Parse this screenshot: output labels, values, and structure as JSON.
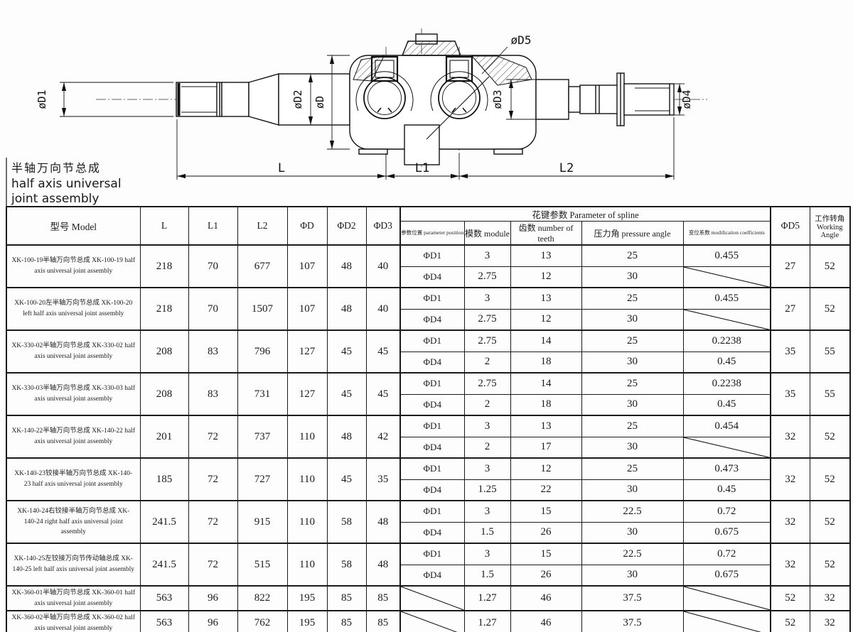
{
  "title_block": {
    "line_zh": "半轴万向节总成",
    "line_en1": "half axis universal",
    "line_en2": "joint assembly"
  },
  "drawing": {
    "labels": {
      "d1": "øD1",
      "d2": "øD2",
      "d": "øD",
      "d3": "øD3",
      "d4": "øD4",
      "d5": "øD5",
      "L": "L",
      "L1": "L1",
      "L2": "L2"
    }
  },
  "table": {
    "headers": {
      "model": "型号 Model",
      "L": "L",
      "L1": "L1",
      "L2": "L2",
      "D": "ΦD",
      "D2": "ΦD2",
      "D3": "ΦD3",
      "spline_group": "花键参数 Parameter of spline",
      "position": "参数位置 parameter position",
      "module": "模数 module",
      "teeth": "齿数 number of teeth",
      "pressure": "压力角 pressure angle",
      "modification": "变位系数 modification coefficients",
      "D5": "ΦD5",
      "angle_zh": "工作转角",
      "angle_en": "Working Angle"
    },
    "rows": [
      {
        "model": "XK-100-19半轴万向节总成  XK-100-19 half axis universal joint assembly",
        "L": "218",
        "L1": "70",
        "L2": "677",
        "D": "107",
        "D2": "48",
        "D3": "40",
        "spline": [
          {
            "pos": "ΦD1",
            "module": "3",
            "teeth": "13",
            "pressure": "25",
            "mod": "0.455"
          },
          {
            "pos": "ΦD4",
            "module": "2.75",
            "teeth": "12",
            "pressure": "30",
            "mod": null
          }
        ],
        "D5": "27",
        "angle": "52"
      },
      {
        "model": "XK-100-20左半轴万向节总成  XK-100-20 left half axis universal joint assembly",
        "L": "218",
        "L1": "70",
        "L2": "1507",
        "D": "107",
        "D2": "48",
        "D3": "40",
        "spline": [
          {
            "pos": "ΦD1",
            "module": "3",
            "teeth": "13",
            "pressure": "25",
            "mod": "0.455"
          },
          {
            "pos": "ΦD4",
            "module": "2.75",
            "teeth": "12",
            "pressure": "30",
            "mod": null
          }
        ],
        "D5": "27",
        "angle": "52"
      },
      {
        "model": "XK-330-02半轴万向节总成  XK-330-02 half axis universal joint assembly",
        "L": "208",
        "L1": "83",
        "L2": "796",
        "D": "127",
        "D2": "45",
        "D3": "45",
        "spline": [
          {
            "pos": "ΦD1",
            "module": "2.75",
            "teeth": "14",
            "pressure": "25",
            "mod": "0.2238"
          },
          {
            "pos": "ΦD4",
            "module": "2",
            "teeth": "18",
            "pressure": "30",
            "mod": "0.45"
          }
        ],
        "D5": "35",
        "angle": "55"
      },
      {
        "model": "XK-330-03半轴万向节总成  XK-330-03 half axis universal joint assembly",
        "L": "208",
        "L1": "83",
        "L2": "731",
        "D": "127",
        "D2": "45",
        "D3": "45",
        "spline": [
          {
            "pos": "ΦD1",
            "module": "2.75",
            "teeth": "14",
            "pressure": "25",
            "mod": "0.2238"
          },
          {
            "pos": "ΦD4",
            "module": "2",
            "teeth": "18",
            "pressure": "30",
            "mod": "0.45"
          }
        ],
        "D5": "35",
        "angle": "55"
      },
      {
        "model": "XK-140-22半轴万向节总成  XK-140-22 half axis universal joint assembly",
        "L": "201",
        "L1": "72",
        "L2": "737",
        "D": "110",
        "D2": "48",
        "D3": "42",
        "spline": [
          {
            "pos": "ΦD1",
            "module": "3",
            "teeth": "13",
            "pressure": "25",
            "mod": "0.454"
          },
          {
            "pos": "ΦD4",
            "module": "2",
            "teeth": "17",
            "pressure": "30",
            "mod": null
          }
        ],
        "D5": "32",
        "angle": "52"
      },
      {
        "model": "XK-140-23铰接半轴万向节总成  XK-140-23 half axis universal joint assembly",
        "L": "185",
        "L1": "72",
        "L2": "727",
        "D": "110",
        "D2": "45",
        "D3": "35",
        "spline": [
          {
            "pos": "ΦD1",
            "module": "3",
            "teeth": "12",
            "pressure": "25",
            "mod": "0.473"
          },
          {
            "pos": "ΦD4",
            "module": "1.25",
            "teeth": "22",
            "pressure": "30",
            "mod": "0.45"
          }
        ],
        "D5": "32",
        "angle": "52"
      },
      {
        "model": "XK-140-24右铰接半轴万向节总成  XK-140-24 right half axis universal joint assembly",
        "L": "241.5",
        "L1": "72",
        "L2": "915",
        "D": "110",
        "D2": "58",
        "D3": "48",
        "spline": [
          {
            "pos": "ΦD1",
            "module": "3",
            "teeth": "15",
            "pressure": "22.5",
            "mod": "0.72"
          },
          {
            "pos": "ΦD4",
            "module": "1.5",
            "teeth": "26",
            "pressure": "30",
            "mod": "0.675"
          }
        ],
        "D5": "32",
        "angle": "52"
      },
      {
        "model": "XK-140-25左铰接万向节传动轴总成  XK-140-25 left half axis universal joint assembly",
        "L": "241.5",
        "L1": "72",
        "L2": "515",
        "D": "110",
        "D2": "58",
        "D3": "48",
        "spline": [
          {
            "pos": "ΦD1",
            "module": "3",
            "teeth": "15",
            "pressure": "22.5",
            "mod": "0.72"
          },
          {
            "pos": "ΦD4",
            "module": "1.5",
            "teeth": "26",
            "pressure": "30",
            "mod": "0.675"
          }
        ],
        "D5": "32",
        "angle": "52"
      },
      {
        "model": "XK-360-01半轴万向节总成  XK-360-01 half axis universal joint assembly",
        "L": "563",
        "L1": "96",
        "L2": "822",
        "D": "195",
        "D2": "85",
        "D3": "85",
        "spline": [
          {
            "pos": null,
            "module": "1.27",
            "teeth": "46",
            "pressure": "37.5",
            "mod": null
          }
        ],
        "D5": "52",
        "angle": "32"
      },
      {
        "model": "XK-360-02半轴万向节总成  XK-360-02 half axis universal joint assembly",
        "L": "563",
        "L1": "96",
        "L2": "762",
        "D": "195",
        "D2": "85",
        "D3": "85",
        "spline": [
          {
            "pos": null,
            "module": "1.27",
            "teeth": "46",
            "pressure": "37.5",
            "mod": null
          }
        ],
        "D5": "52",
        "angle": "32"
      }
    ]
  }
}
